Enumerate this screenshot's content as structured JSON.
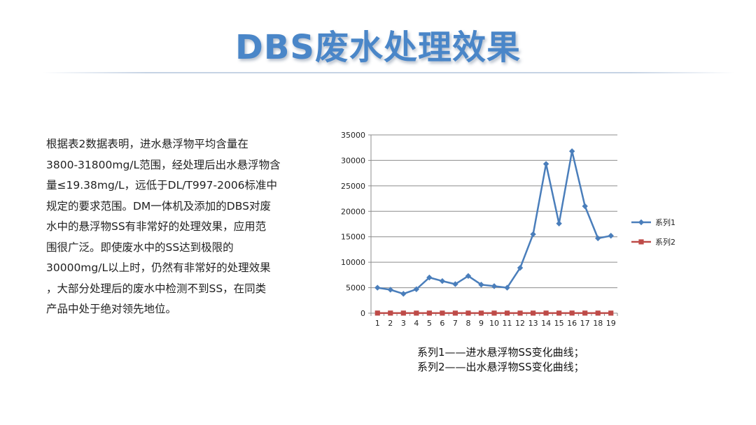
{
  "title": "DBS废水处理效果",
  "body": {
    "lines": [
      "根据表2数据表明，进水悬浮物平均含量在",
      "3800-31800mg/L范围，经处理后出水悬浮物含",
      "量≤19.38mg/L，远低于DL/T997-2006标准中",
      "规定的要求范围。DM一体机及添加的DBS对废",
      "水中的悬浮物SS有非常好的处理效果，应用范",
      "围很广泛。即使废水中的SS达到极限的",
      "30000mg/L以上时，仍然有非常好的处理效果",
      "，大部分处理后的废水中检测不到SS，在同类",
      "产品中处于绝对领先地位。"
    ]
  },
  "chart_data": {
    "type": "line",
    "x": [
      1,
      2,
      3,
      4,
      5,
      6,
      7,
      8,
      9,
      10,
      11,
      12,
      13,
      14,
      15,
      16,
      17,
      18,
      19
    ],
    "ylim": [
      0,
      35000
    ],
    "yticks": [
      0,
      5000,
      10000,
      15000,
      20000,
      25000,
      30000,
      35000
    ],
    "grid": true,
    "legend_position": "right",
    "series": [
      {
        "name": "系列1",
        "color": "#4a7ebb",
        "marker": "diamond",
        "values": [
          5000,
          4600,
          3800,
          4700,
          7000,
          6300,
          5700,
          7300,
          5600,
          5300,
          5000,
          8900,
          15500,
          29300,
          17600,
          31800,
          21000,
          14700,
          15200
        ]
      },
      {
        "name": "系列2",
        "color": "#be4b48",
        "marker": "square",
        "values": [
          19,
          15,
          12,
          10,
          14,
          11,
          9,
          13,
          8,
          10,
          12,
          9,
          11,
          16,
          10,
          19,
          14,
          12,
          9
        ]
      }
    ]
  },
  "note": {
    "lines": [
      "系列1——进水悬浮物SS变化曲线；",
      "系列2——出水悬浮物SS变化曲线；"
    ]
  }
}
